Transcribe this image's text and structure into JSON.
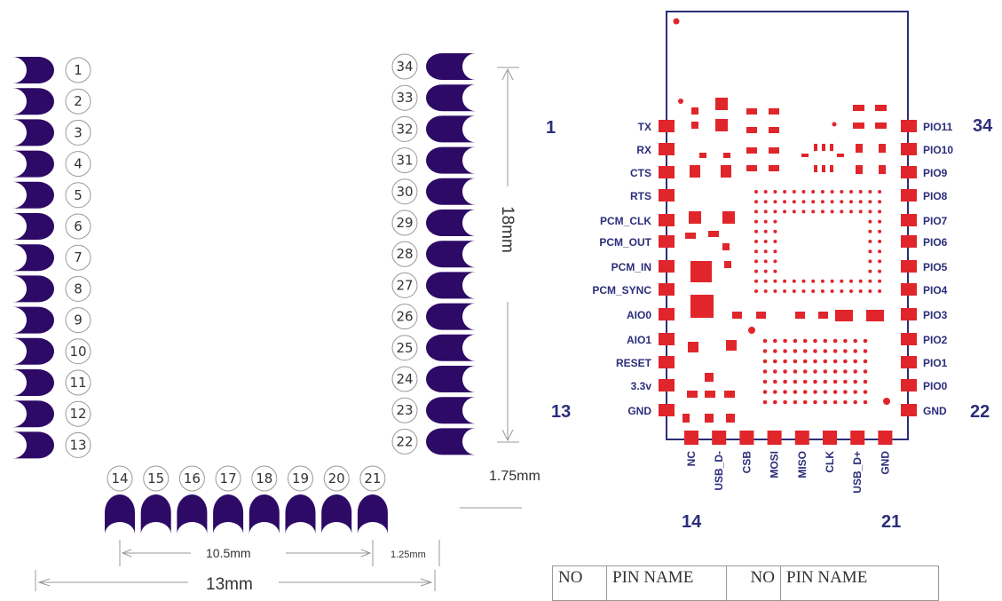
{
  "left_pin_numbers": [
    "1",
    "2",
    "3",
    "4",
    "5",
    "6",
    "7",
    "8",
    "9",
    "10",
    "11",
    "12",
    "13"
  ],
  "right_pin_numbers": [
    "34",
    "33",
    "32",
    "31",
    "30",
    "29",
    "28",
    "27",
    "26",
    "25",
    "24",
    "23",
    "22"
  ],
  "bottom_pin_numbers": [
    "14",
    "15",
    "16",
    "17",
    "18",
    "19",
    "20",
    "21"
  ],
  "dimensions": {
    "height": "18mm",
    "bottom_margin": "1.75mm",
    "pitch_span": "10.5mm",
    "edge": "1.25mm",
    "width": "13mm"
  },
  "module": {
    "left_labels": [
      "TX",
      "RX",
      "CTS",
      "RTS",
      "PCM_CLK",
      "PCM_OUT",
      "PCM_IN",
      "PCM_SYNC",
      "AIO0",
      "AIO1",
      "RESET",
      "3.3v",
      "GND"
    ],
    "right_labels": [
      "PIO11",
      "PIO10",
      "PIO9",
      "PIO8",
      "PIO7",
      "PIO6",
      "PIO5",
      "PIO4",
      "PIO3",
      "PIO2",
      "PIO1",
      "PIO0",
      "GND"
    ],
    "bottom_labels": [
      "NC",
      "USB_D-",
      "CSB",
      "MOSI",
      "MISO",
      "CLK",
      "USB_D+",
      "GND"
    ],
    "corner_numbers": {
      "top_left": "1",
      "top_right": "34",
      "bottom_left": "13",
      "bottom_right": "22",
      "bottom_first": "14",
      "bottom_last": "21"
    }
  },
  "table": {
    "headers": [
      "NO",
      "PIN NAME",
      "NO",
      "PIN NAME"
    ]
  }
}
